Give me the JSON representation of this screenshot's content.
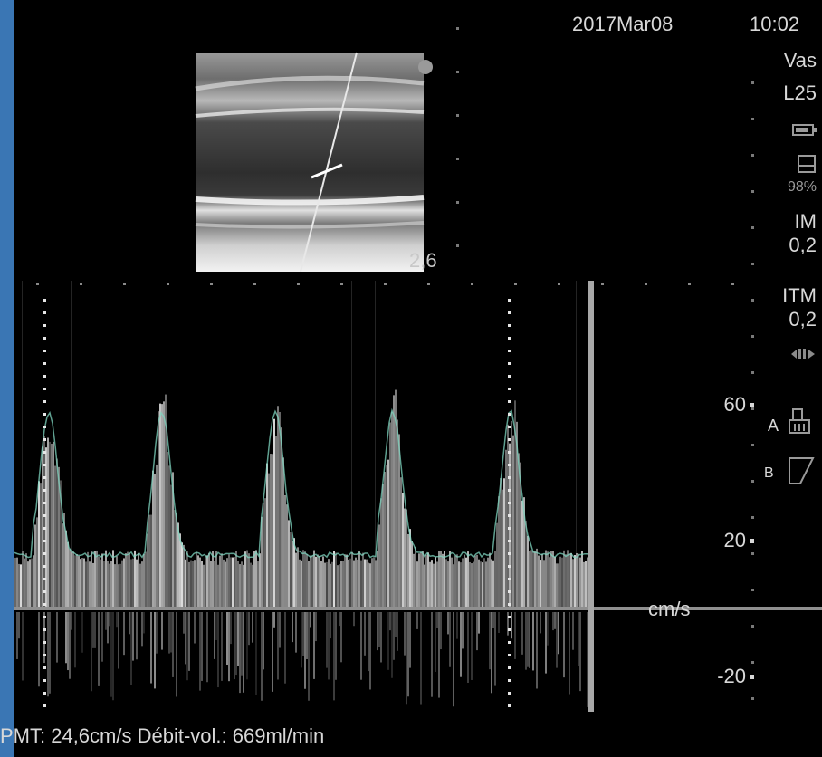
{
  "header": {
    "date": "2017Mar08",
    "time": "10:02"
  },
  "sidebar": {
    "preset": "Vas",
    "probe": "L25",
    "power_percent": "98%",
    "mi_label": "IM",
    "mi_value": "0,2",
    "tis_label": "ITM",
    "tis_value": "0,2"
  },
  "bmode": {
    "depth_value": "2,6"
  },
  "doppler": {
    "scale_unit": "cm/s",
    "scale_ticks": [
      {
        "value": 60,
        "label": "60"
      },
      {
        "value": 20,
        "label": "20"
      },
      {
        "value": -20,
        "label": "-20"
      }
    ],
    "marker_a": "A",
    "marker_b": "B"
  },
  "footer": {
    "measurement_text": "PMT: 24,6cm/s Débit-vol.:  669ml/min"
  },
  "colors": {
    "background": "#000000",
    "frame": "#3a76b4",
    "trace": "#7fd6c0",
    "text": "#d8d8d8"
  }
}
